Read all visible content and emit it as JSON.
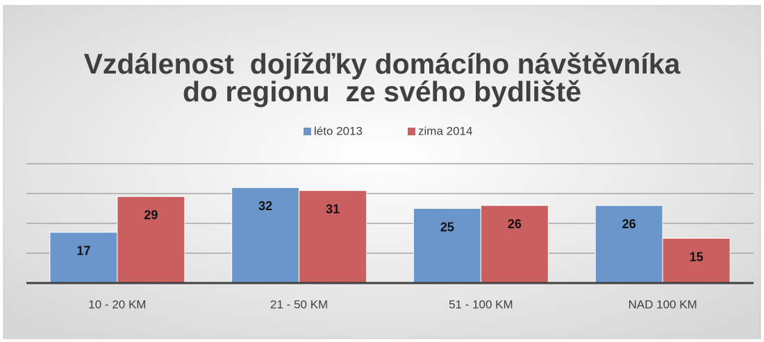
{
  "chart_data": {
    "type": "bar",
    "title": [
      "Vzdálenost  dojížďky domácího návštěvníka",
      "do regionu  ze svého bydliště"
    ],
    "categories": [
      "10 - 20 KM",
      "21 - 50 KM",
      "51 - 100 KM",
      "NAD 100 KM"
    ],
    "series": [
      {
        "name": "léto 2013",
        "color": "#6a96cc",
        "values": [
          17,
          32,
          25,
          26
        ]
      },
      {
        "name": "zima 2014",
        "color": "#c9605f",
        "values": [
          29,
          31,
          26,
          15
        ]
      }
    ],
    "ylim": [
      0,
      40
    ],
    "yticks": [
      0,
      10,
      20,
      30,
      40
    ],
    "grid": true,
    "legend": "top"
  }
}
